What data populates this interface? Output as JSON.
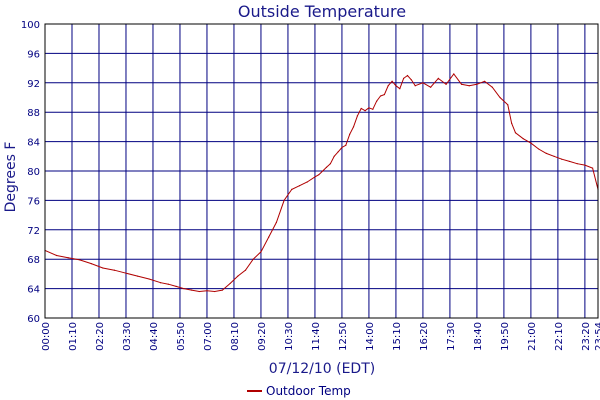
{
  "chart_data": {
    "type": "line",
    "title": "Outside Temperature",
    "xlabel": "07/12/10 (EDT)",
    "ylabel": "Degrees F",
    "x_ticks": [
      "00:00",
      "01:10",
      "02:20",
      "03:30",
      "04:40",
      "05:50",
      "07:00",
      "08:10",
      "09:20",
      "10:30",
      "11:40",
      "12:50",
      "14:00",
      "15:10",
      "16:20",
      "17:30",
      "18:40",
      "19:50",
      "21:00",
      "22:10",
      "23:20",
      "23:54"
    ],
    "y_ticks": [
      60,
      64,
      68,
      72,
      76,
      80,
      84,
      88,
      92,
      96,
      100
    ],
    "ylim": [
      60,
      100
    ],
    "grid": true,
    "legend_position": "bottom-center",
    "series": [
      {
        "name": "Outdoor Temp",
        "color": "#b00000",
        "x": [
          "00:00",
          "00:30",
          "01:00",
          "01:30",
          "02:00",
          "02:30",
          "03:00",
          "03:30",
          "04:00",
          "04:30",
          "05:00",
          "05:20",
          "05:40",
          "06:00",
          "06:20",
          "06:40",
          "07:00",
          "07:20",
          "07:40",
          "08:00",
          "08:20",
          "08:40",
          "09:00",
          "09:20",
          "09:40",
          "10:00",
          "10:20",
          "10:40",
          "11:00",
          "11:20",
          "11:40",
          "11:50",
          "12:00",
          "12:10",
          "12:20",
          "12:30",
          "12:40",
          "12:50",
          "13:00",
          "13:10",
          "13:20",
          "13:30",
          "13:40",
          "13:50",
          "14:00",
          "14:10",
          "14:20",
          "14:30",
          "14:40",
          "14:50",
          "15:00",
          "15:10",
          "15:20",
          "15:30",
          "15:40",
          "15:50",
          "16:00",
          "16:20",
          "16:40",
          "17:00",
          "17:20",
          "17:40",
          "18:00",
          "18:20",
          "18:40",
          "19:00",
          "19:20",
          "19:40",
          "20:00",
          "20:10",
          "20:20",
          "20:40",
          "21:00",
          "21:20",
          "21:40",
          "22:00",
          "22:20",
          "22:40",
          "23:00",
          "23:20",
          "23:40",
          "23:54"
        ],
        "y": [
          69.2,
          68.5,
          68.2,
          67.9,
          67.4,
          66.8,
          66.5,
          66.1,
          65.7,
          65.3,
          64.8,
          64.6,
          64.3,
          64.0,
          63.8,
          63.6,
          63.7,
          63.6,
          63.8,
          64.7,
          65.7,
          66.5,
          68.0,
          69.0,
          71.0,
          73.0,
          76.0,
          77.5,
          78.0,
          78.5,
          79.2,
          79.5,
          80.0,
          80.5,
          81.0,
          82.0,
          82.6,
          83.2,
          83.5,
          85.0,
          86.0,
          87.5,
          88.5,
          88.2,
          88.6,
          88.4,
          89.5,
          90.2,
          90.4,
          91.6,
          92.2,
          91.6,
          91.2,
          92.6,
          93.0,
          92.4,
          91.6,
          92.0,
          91.4,
          92.6,
          91.8,
          93.2,
          91.8,
          91.6,
          91.8,
          92.2,
          91.4,
          90.0,
          89.0,
          86.5,
          85.2,
          84.4,
          83.8,
          83.0,
          82.4,
          82.0,
          81.6,
          81.3,
          81.0,
          80.8,
          80.4,
          77.5
        ]
      }
    ]
  }
}
